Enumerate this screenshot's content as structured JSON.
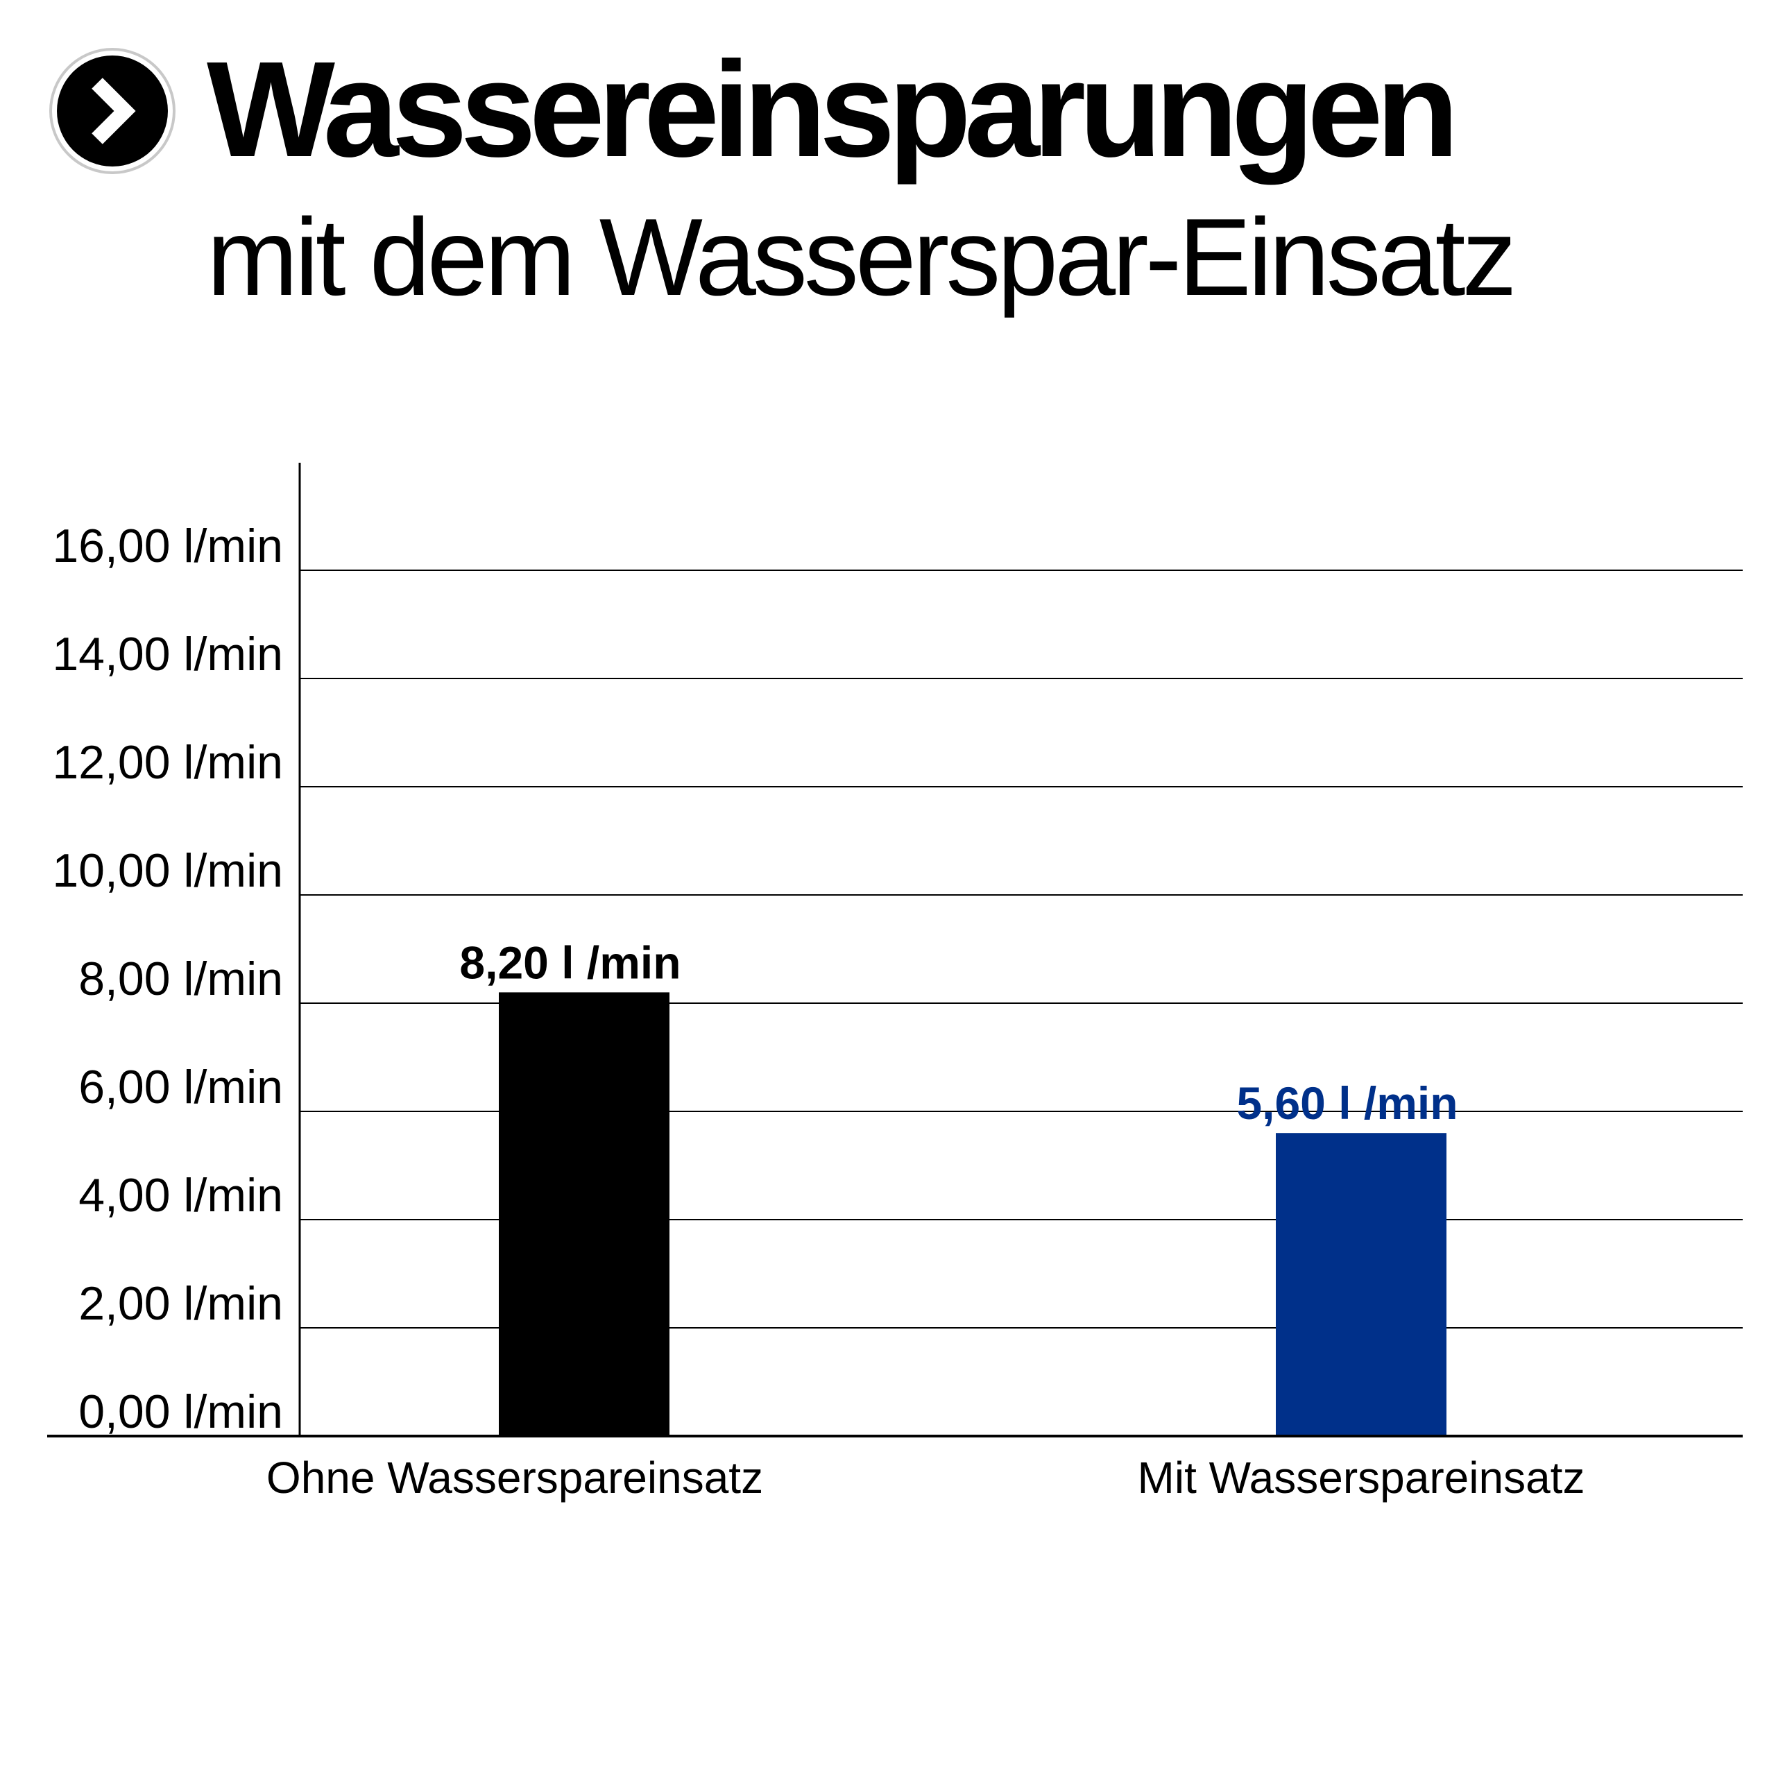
{
  "header": {
    "title": "Wassereinsparungen",
    "subtitle": "mit dem Wasserspar-Einsatz",
    "icon": "chevron-right-circle-icon"
  },
  "chart_data": {
    "type": "bar",
    "categories": [
      "Ohne Wasserspareinsatz",
      "Mit Wasserspareinsatz"
    ],
    "values": [
      8.2,
      5.6
    ],
    "value_labels": [
      "8,20 l /min",
      "5,60 l /min"
    ],
    "bar_colors": [
      "#000000",
      "#00308a"
    ],
    "yticks": [
      0,
      2,
      4,
      6,
      8,
      10,
      12,
      14,
      16
    ],
    "ytick_labels": [
      "0,00 l/min",
      "2,00 l/min",
      "4,00 l/min",
      "6,00 l/min",
      "8,00 l/min",
      "10,00 l/min",
      "12,00 l/min",
      "14,00 l/min",
      "16,00 l/min"
    ],
    "ylim": [
      0,
      18
    ],
    "grid": true,
    "xlabel": "",
    "ylabel": ""
  }
}
